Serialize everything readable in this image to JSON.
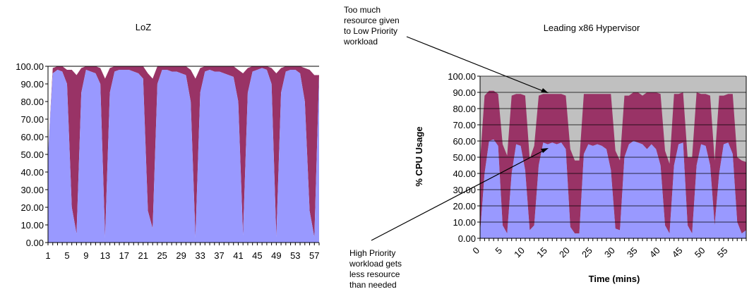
{
  "annotations": {
    "top": [
      "Too much",
      "resource given",
      "to Low Priority",
      "workload"
    ],
    "bottom": [
      "High Priority",
      "workload gets",
      "less resource",
      "than needed"
    ]
  },
  "colors": {
    "high": "#9999ff",
    "low": "#993366",
    "idle": "#c0c0c0",
    "grid": "#000000"
  },
  "chart_data": [
    {
      "type": "area",
      "stacked": true,
      "title": "LoZ",
      "xlabel": "",
      "ylabel": "",
      "ylim": [
        0,
        100
      ],
      "yticks": [
        "0.00",
        "10.00",
        "20.00",
        "30.00",
        "40.00",
        "50.00",
        "60.00",
        "70.00",
        "80.00",
        "90.00",
        "100.00"
      ],
      "xticks": [
        "1",
        "5",
        "9",
        "13",
        "17",
        "21",
        "25",
        "29",
        "33",
        "37",
        "41",
        "45",
        "49",
        "53",
        "57"
      ],
      "x": [
        1,
        2,
        3,
        4,
        5,
        6,
        7,
        8,
        9,
        10,
        11,
        12,
        13,
        14,
        15,
        16,
        17,
        18,
        19,
        20,
        21,
        22,
        23,
        24,
        25,
        26,
        27,
        28,
        29,
        30,
        31,
        32,
        33,
        34,
        35,
        36,
        37,
        38,
        39,
        40,
        41,
        42,
        43,
        44,
        45,
        46,
        47,
        48,
        49,
        50,
        51,
        52,
        53,
        54,
        55,
        56,
        57,
        58
      ],
      "series": [
        {
          "values": [
            50,
            96,
            98,
            97,
            90,
            20,
            5,
            85,
            98,
            97,
            96,
            90,
            3,
            85,
            97,
            98,
            98,
            98,
            97,
            96,
            93,
            18,
            8,
            90,
            98,
            98,
            97,
            97,
            96,
            95,
            80,
            3,
            85,
            97,
            98,
            97,
            97,
            96,
            95,
            94,
            80,
            4,
            85,
            97,
            98,
            99,
            98,
            90,
            3,
            85,
            97,
            98,
            98,
            96,
            80,
            18,
            3,
            95
          ]
        },
        {
          "values": [
            0,
            3,
            2,
            3,
            8,
            78,
            90,
            14,
            2,
            3,
            4,
            9,
            90,
            14,
            3,
            2,
            2,
            2,
            3,
            4,
            7,
            78,
            85,
            10,
            2,
            2,
            3,
            3,
            4,
            5,
            18,
            90,
            14,
            3,
            2,
            3,
            3,
            4,
            5,
            6,
            18,
            92,
            14,
            3,
            2,
            1,
            2,
            9,
            93,
            14,
            3,
            2,
            2,
            4,
            19,
            80,
            92,
            0
          ]
        }
      ]
    },
    {
      "type": "area",
      "stacked": true,
      "title": "Leading x86 Hypervisor",
      "xlabel": "Time (mins)",
      "ylabel": "% CPU Usage",
      "ylim": [
        0,
        100
      ],
      "yticks": [
        "0.00",
        "10.00",
        "20.00",
        "30.00",
        "40.00",
        "50.00",
        "60.00",
        "70.00",
        "80.00",
        "90.00",
        "100.00"
      ],
      "xticks": [
        "0",
        "5",
        "10",
        "15",
        "20",
        "25",
        "30",
        "35",
        "40",
        "45",
        "50",
        "55"
      ],
      "x": [
        0,
        1,
        2,
        3,
        4,
        5,
        6,
        7,
        8,
        9,
        10,
        11,
        12,
        13,
        14,
        15,
        16,
        17,
        18,
        19,
        20,
        21,
        22,
        23,
        24,
        25,
        26,
        27,
        28,
        29,
        30,
        31,
        32,
        33,
        34,
        35,
        36,
        37,
        38,
        39,
        40,
        41,
        42,
        43,
        44,
        45,
        46,
        47,
        48,
        49,
        50,
        51,
        52,
        53,
        54,
        55,
        56,
        57,
        58,
        59
      ],
      "series": [
        {
          "values": [
            3,
            40,
            60,
            61,
            57,
            8,
            3,
            40,
            58,
            57,
            42,
            5,
            8,
            45,
            59,
            58,
            59,
            58,
            59,
            55,
            7,
            3,
            3,
            52,
            58,
            57,
            58,
            57,
            55,
            42,
            6,
            5,
            50,
            58,
            60,
            59,
            58,
            55,
            58,
            55,
            45,
            8,
            3,
            45,
            58,
            59,
            8,
            3,
            45,
            58,
            57,
            45,
            8,
            40,
            58,
            59,
            52,
            10,
            3,
            5
          ]
        },
        {
          "values": [
            45,
            48,
            31,
            30,
            32,
            50,
            48,
            48,
            31,
            32,
            46,
            44,
            49,
            43,
            30,
            31,
            30,
            31,
            30,
            33,
            48,
            45,
            45,
            37,
            31,
            32,
            31,
            32,
            34,
            47,
            48,
            43,
            38,
            30,
            30,
            31,
            30,
            35,
            32,
            35,
            44,
            46,
            43,
            44,
            31,
            31,
            42,
            47,
            45,
            31,
            32,
            43,
            40,
            48,
            30,
            30,
            37,
            40,
            45,
            42
          ]
        }
      ]
    }
  ]
}
